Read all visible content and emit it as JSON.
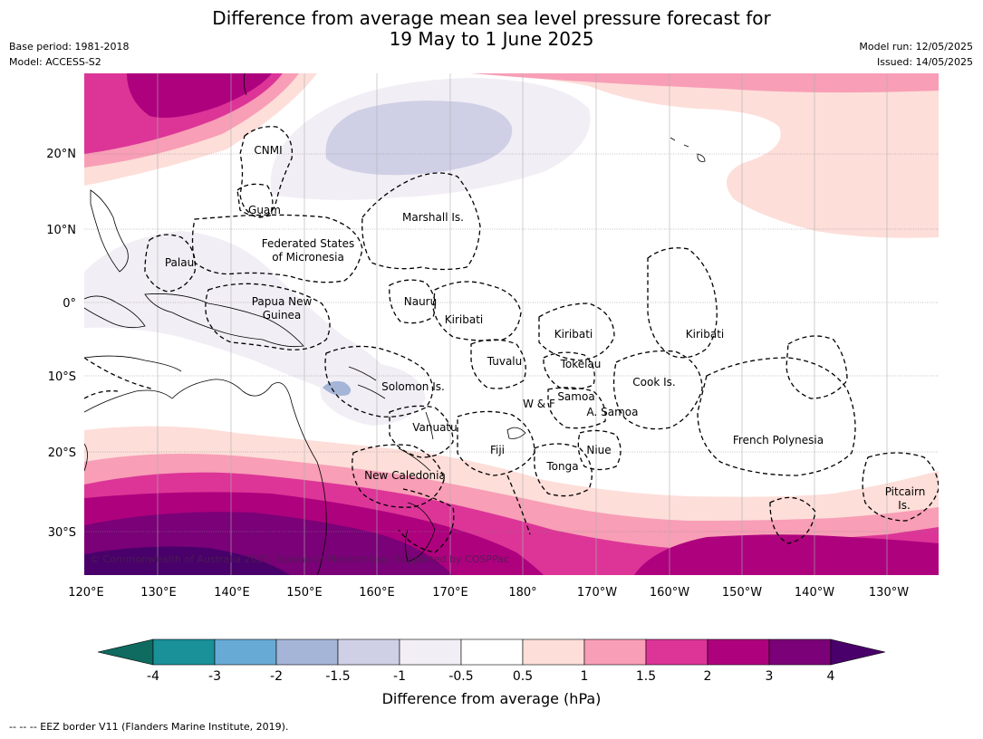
{
  "title": {
    "line1": "Difference from average mean sea level pressure forecast for",
    "line2": "19 May to 1 June 2025"
  },
  "meta": {
    "base_period": "Base period: 1981-2018",
    "model": "Model: ACCESS-S2",
    "model_run": "Model run: 12/05/2025",
    "issued": "Issued: 14/05/2025"
  },
  "map": {
    "lat_labels": [
      "20°N",
      "10°N",
      "0°",
      "10°S",
      "20°S",
      "30°S"
    ],
    "lon_labels": [
      "120°E",
      "130°E",
      "140°E",
      "150°E",
      "160°E",
      "170°E",
      "180°",
      "170°W",
      "160°W",
      "150°W",
      "140°W",
      "130°W"
    ],
    "copyright": "© Commonwealth of Australia 2025, Bureau of Meteorology. Supported by COSPPac",
    "regions": [
      {
        "name": "CNMI"
      },
      {
        "name": "Guam"
      },
      {
        "name": "Marshall Is."
      },
      {
        "name": "Federated States"
      },
      {
        "name": "of Micronesia"
      },
      {
        "name": "Palau"
      },
      {
        "name": "Papua New"
      },
      {
        "name": "Guinea"
      },
      {
        "name": "Nauru"
      },
      {
        "name": "Kiribati"
      },
      {
        "name": "Kiribati"
      },
      {
        "name": "Kiribati"
      },
      {
        "name": "Tuvalu"
      },
      {
        "name": "Tokelau"
      },
      {
        "name": "Cook Is."
      },
      {
        "name": "Solomon Is."
      },
      {
        "name": "W & F"
      },
      {
        "name": "Samoa"
      },
      {
        "name": "A. Samoa"
      },
      {
        "name": "Vanuatu"
      },
      {
        "name": "Fiji"
      },
      {
        "name": "Niue"
      },
      {
        "name": "Tonga"
      },
      {
        "name": "French Polynesia"
      },
      {
        "name": "New Caledonia"
      },
      {
        "name": "Pitcairn"
      },
      {
        "name": "Is."
      }
    ]
  },
  "colorbar": {
    "ticks": [
      "-4",
      "-3",
      "-2",
      "-1.5",
      "-1",
      "-0.5",
      "0.5",
      "1",
      "1.5",
      "2",
      "3",
      "4"
    ],
    "colors": [
      "#0f6b60",
      "#1a9099",
      "#67aad6",
      "#a5b5d8",
      "#cfd0e6",
      "#f2eef5",
      "#ffffff",
      "#fdded9",
      "#f89eb6",
      "#dc3597",
      "#ae017e",
      "#7a0177",
      "#49006a"
    ],
    "label": "Difference from average (hPa)"
  },
  "footnote": "--  --  -- EEZ border V11 (Flanders Marine Institute, 2019)."
}
